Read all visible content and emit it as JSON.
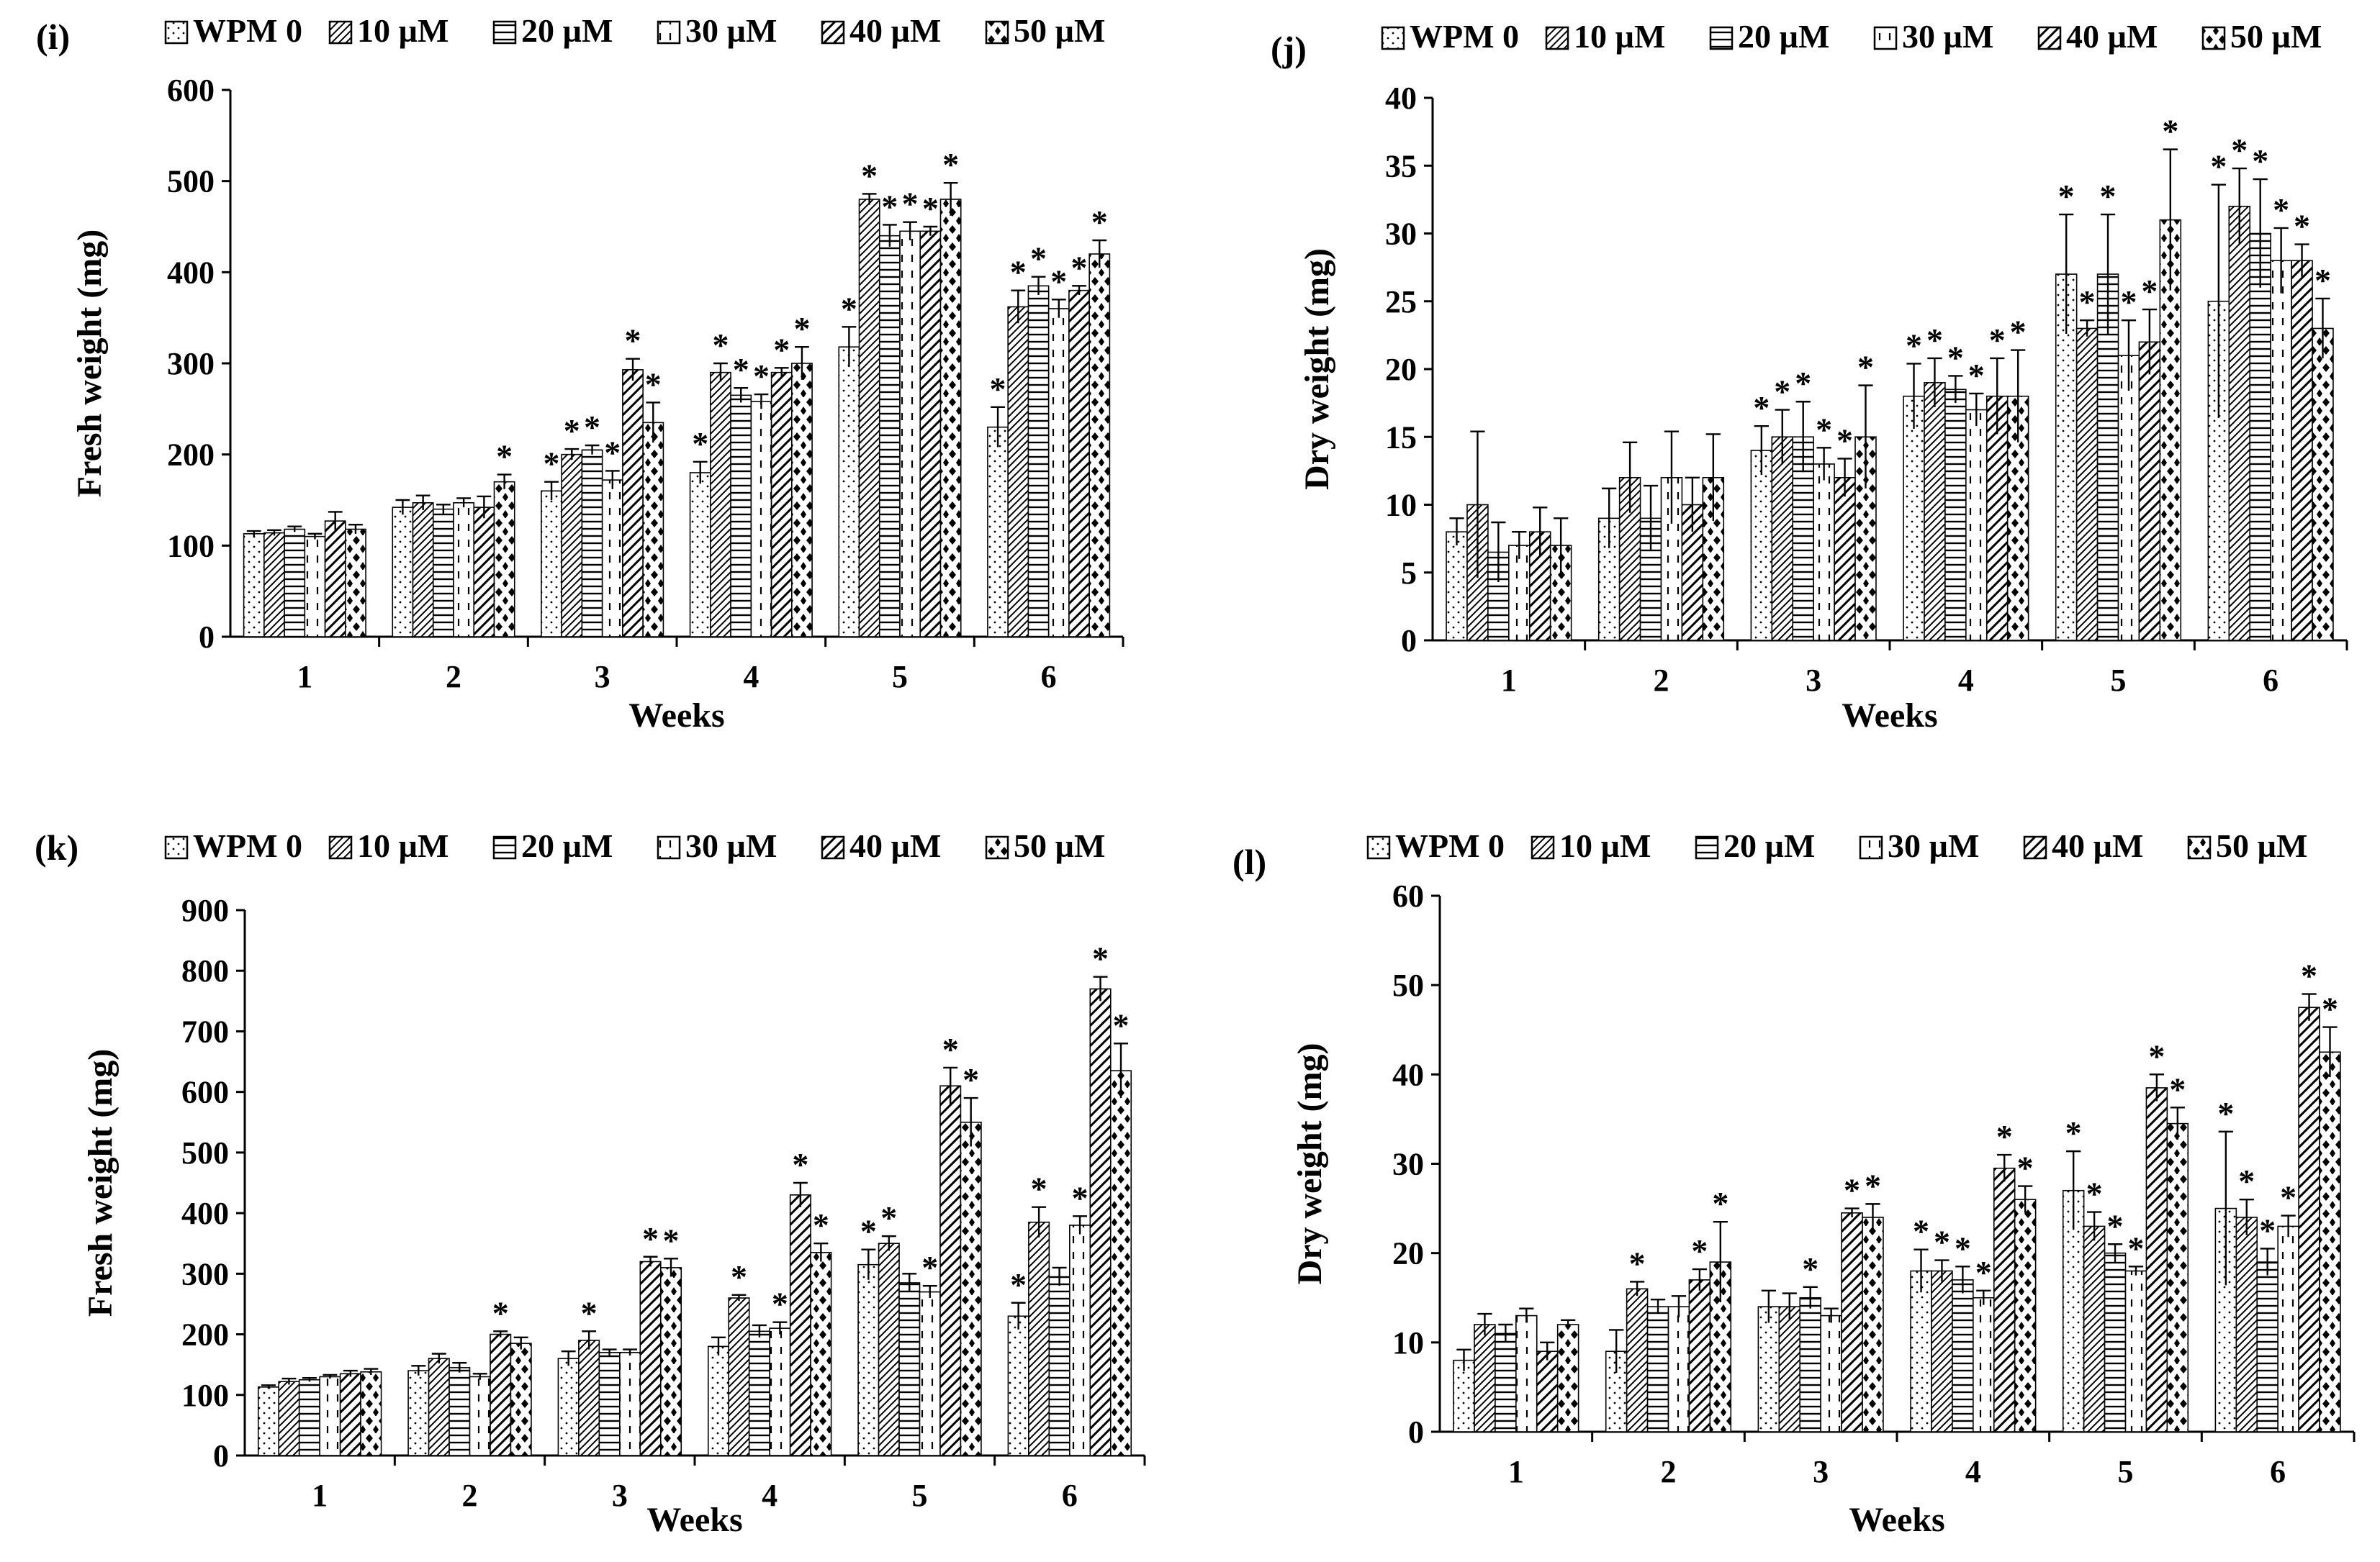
{
  "chart_data": [
    {
      "type": "bar",
      "panel_label": "(i)",
      "legend": [
        "WPM 0",
        "10 µM",
        "20 µM",
        "30 µM",
        "40 µM",
        "50 µM"
      ],
      "categories": [
        "1",
        "2",
        "3",
        "4",
        "5",
        "6"
      ],
      "xlabel": "Weeks",
      "ylabel": "Fresh weight (mg)",
      "ylim": [
        0,
        600
      ],
      "yticks": [
        "0",
        "100",
        "200",
        "300",
        "400",
        "500",
        "600"
      ],
      "series": [
        {
          "name": "WPM 0",
          "values": [
            113,
            142,
            160,
            180,
            318,
            230
          ],
          "errors": [
            3,
            8,
            10,
            12,
            22,
            22
          ],
          "sig": [
            false,
            false,
            true,
            true,
            true,
            true
          ]
        },
        {
          "name": "10 µM",
          "values": [
            114,
            147,
            200,
            290,
            480,
            362
          ],
          "errors": [
            3,
            8,
            6,
            10,
            6,
            18
          ],
          "sig": [
            false,
            false,
            true,
            true,
            true,
            true
          ]
        },
        {
          "name": "20 µM",
          "values": [
            118,
            140,
            205,
            265,
            440,
            385
          ],
          "errors": [
            3,
            5,
            5,
            8,
            12,
            10
          ],
          "sig": [
            false,
            false,
            true,
            true,
            true,
            true
          ]
        },
        {
          "name": "30 µM",
          "values": [
            110,
            147,
            172,
            258,
            445,
            360
          ],
          "errors": [
            3,
            5,
            10,
            8,
            10,
            10
          ],
          "sig": [
            false,
            false,
            true,
            true,
            true,
            true
          ]
        },
        {
          "name": "40 µM",
          "values": [
            127,
            142,
            293,
            290,
            445,
            380
          ],
          "errors": [
            10,
            12,
            12,
            5,
            5,
            5
          ],
          "sig": [
            false,
            false,
            true,
            true,
            true,
            true
          ]
        },
        {
          "name": "50 µM",
          "values": [
            118,
            170,
            235,
            300,
            480,
            420
          ],
          "errors": [
            5,
            8,
            22,
            18,
            18,
            15
          ],
          "sig": [
            false,
            true,
            true,
            true,
            true,
            true
          ]
        }
      ]
    },
    {
      "type": "bar",
      "panel_label": "(j)",
      "legend": [
        "WPM 0",
        "10 µM",
        "20 µM",
        "30 µM",
        "40 µM",
        "50 µM"
      ],
      "categories": [
        "1",
        "2",
        "3",
        "4",
        "5",
        "6"
      ],
      "xlabel": "Weeks",
      "ylabel": "Dry weight (mg)",
      "ylim": [
        0,
        40
      ],
      "yticks": [
        "0",
        "5",
        "10",
        "15",
        "20",
        "25",
        "30",
        "35",
        "40"
      ],
      "series": [
        {
          "name": "WPM 0",
          "values": [
            8,
            9,
            14,
            18,
            27,
            25
          ],
          "errors": [
            1,
            2.2,
            1.8,
            2.4,
            4.4,
            8.6
          ],
          "sig": [
            false,
            false,
            true,
            true,
            true,
            true
          ]
        },
        {
          "name": "10 µM",
          "values": [
            10,
            12,
            15,
            19,
            23,
            32
          ],
          "errors": [
            5.4,
            2.6,
            2,
            1.8,
            0.6,
            2.8
          ],
          "sig": [
            false,
            false,
            true,
            true,
            true,
            true
          ]
        },
        {
          "name": "20 µM",
          "values": [
            6.5,
            9,
            15,
            18.5,
            27,
            30
          ],
          "errors": [
            2.2,
            2.4,
            2.6,
            1,
            4.4,
            4
          ],
          "sig": [
            false,
            false,
            true,
            true,
            true,
            true
          ]
        },
        {
          "name": "30 µM",
          "values": [
            7,
            12,
            13,
            17,
            21,
            28
          ],
          "errors": [
            1,
            3.4,
            1.2,
            1.2,
            2.6,
            2.4
          ],
          "sig": [
            false,
            false,
            true,
            true,
            true,
            true
          ]
        },
        {
          "name": "40 µM",
          "values": [
            8,
            10,
            12,
            18,
            22,
            28
          ],
          "errors": [
            1.8,
            2,
            1.4,
            2.8,
            2.4,
            1.2
          ],
          "sig": [
            false,
            false,
            true,
            true,
            true,
            true
          ]
        },
        {
          "name": "50 µM",
          "values": [
            7,
            12,
            15,
            18,
            31,
            23
          ],
          "errors": [
            2,
            3.2,
            3.8,
            3.4,
            5.2,
            2.2
          ],
          "sig": [
            false,
            false,
            true,
            true,
            true,
            true
          ]
        }
      ]
    },
    {
      "type": "bar",
      "panel_label": "(k)",
      "legend": [
        "WPM 0",
        "10 µM",
        "20 µM",
        "30 µM",
        "40 µM",
        "50 µM"
      ],
      "categories": [
        "1",
        "2",
        "3",
        "4",
        "5",
        "6"
      ],
      "xlabel": "Weeks",
      "ylabel": "Fresh weight (mg)",
      "ylim": [
        0,
        900
      ],
      "yticks": [
        "0",
        "100",
        "200",
        "300",
        "400",
        "500",
        "600",
        "700",
        "800",
        "900"
      ],
      "series": [
        {
          "name": "WPM 0",
          "values": [
            113,
            140,
            160,
            180,
            315,
            230
          ],
          "errors": [
            3,
            8,
            12,
            15,
            25,
            22
          ],
          "sig": [
            false,
            false,
            false,
            false,
            true,
            true
          ]
        },
        {
          "name": "10 µM",
          "values": [
            122,
            160,
            190,
            260,
            350,
            385
          ],
          "errors": [
            5,
            8,
            15,
            5,
            12,
            25
          ],
          "sig": [
            false,
            false,
            true,
            true,
            true,
            true
          ]
        },
        {
          "name": "20 µM",
          "values": [
            125,
            145,
            170,
            205,
            285,
            295
          ],
          "errors": [
            3,
            8,
            5,
            10,
            15,
            15
          ],
          "sig": [
            false,
            false,
            false,
            false,
            false,
            false
          ]
        },
        {
          "name": "30 µM",
          "values": [
            130,
            130,
            170,
            210,
            270,
            380
          ],
          "errors": [
            3,
            5,
            5,
            10,
            10,
            15
          ],
          "sig": [
            false,
            false,
            false,
            true,
            true,
            true
          ]
        },
        {
          "name": "40 µM",
          "values": [
            135,
            200,
            320,
            430,
            610,
            770
          ],
          "errors": [
            5,
            5,
            8,
            20,
            30,
            20
          ],
          "sig": [
            false,
            true,
            true,
            true,
            true,
            true
          ]
        },
        {
          "name": "50 µM",
          "values": [
            138,
            185,
            310,
            335,
            550,
            635
          ],
          "errors": [
            5,
            10,
            15,
            15,
            40,
            45
          ],
          "sig": [
            false,
            false,
            true,
            true,
            true,
            true
          ]
        }
      ]
    },
    {
      "type": "bar",
      "panel_label": "(l)",
      "legend": [
        "WPM 0",
        "10 µM",
        "20 µM",
        "30 µM",
        "40 µM",
        "50 µM"
      ],
      "categories": [
        "1",
        "2",
        "3",
        "4",
        "5",
        "6"
      ],
      "xlabel": "Weeks",
      "ylabel": "Dry weight (mg)",
      "ylim": [
        0,
        60
      ],
      "yticks": [
        "0",
        "10",
        "20",
        "30",
        "40",
        "50",
        "60"
      ],
      "series": [
        {
          "name": "WPM 0",
          "values": [
            8,
            9,
            14,
            18,
            27,
            25
          ],
          "errors": [
            1.2,
            2.4,
            1.8,
            2.4,
            4.4,
            8.6
          ],
          "sig": [
            false,
            false,
            false,
            true,
            true,
            true
          ]
        },
        {
          "name": "10 µM",
          "values": [
            12,
            16,
            14,
            18,
            23,
            24
          ],
          "errors": [
            1.2,
            0.8,
            1.5,
            1.2,
            1.6,
            2
          ],
          "sig": [
            false,
            true,
            false,
            true,
            true,
            true
          ]
        },
        {
          "name": "20 µM",
          "values": [
            11,
            14,
            15,
            17,
            20,
            19
          ],
          "errors": [
            1,
            0.8,
            1.2,
            1.5,
            1,
            1.5
          ],
          "sig": [
            false,
            false,
            true,
            true,
            true,
            true
          ]
        },
        {
          "name": "30 µM",
          "values": [
            13,
            14,
            13,
            15,
            18,
            23
          ],
          "errors": [
            0.8,
            1.2,
            0.8,
            0.8,
            0.5,
            1.2
          ],
          "sig": [
            false,
            false,
            false,
            true,
            true,
            true
          ]
        },
        {
          "name": "40 µM",
          "values": [
            9,
            17,
            24.5,
            29.5,
            38.5,
            47.5
          ],
          "errors": [
            1,
            1.2,
            0.5,
            1.5,
            1.5,
            1.5
          ],
          "sig": [
            false,
            true,
            true,
            true,
            true,
            true
          ]
        },
        {
          "name": "50 µM",
          "values": [
            12,
            19,
            24,
            26,
            34.5,
            42.5
          ],
          "errors": [
            0.5,
            4.5,
            1.5,
            1.5,
            1.8,
            2.8
          ],
          "sig": [
            false,
            true,
            true,
            true,
            true,
            true
          ]
        }
      ]
    }
  ]
}
